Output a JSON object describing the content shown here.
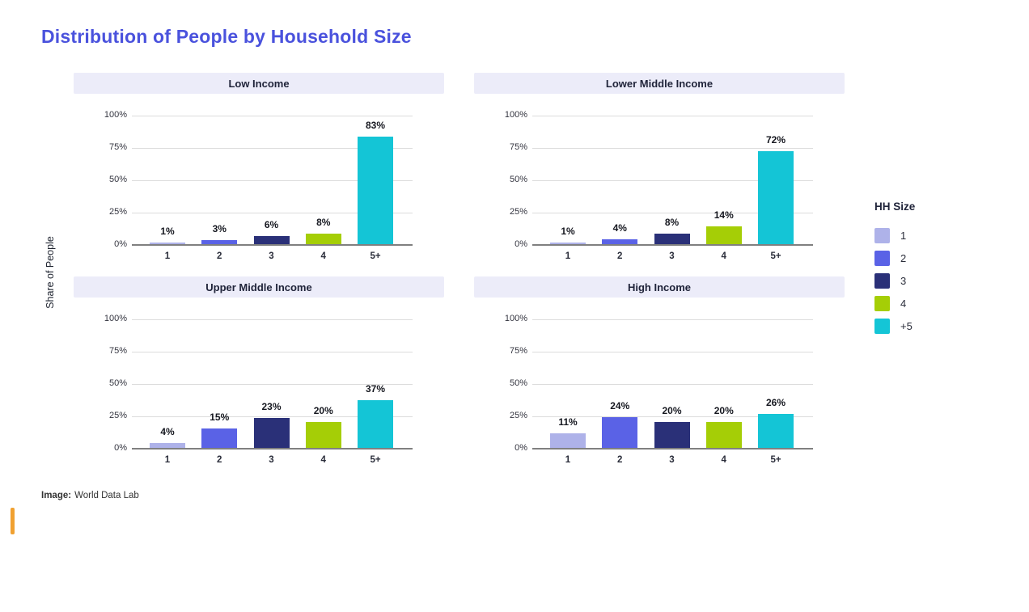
{
  "page": {
    "title": "Distribution of People by Household Size",
    "ylabel": "Share of People",
    "footer": {
      "label": "Image:",
      "source": "World Data Lab"
    }
  },
  "colors": {
    "title_text": "#4a52dd",
    "panel_header_band": "#ececf9",
    "accent_bar_orange": "#f0a131",
    "gridline": "#dcdcdc",
    "axis_line": "#808080"
  },
  "legend": {
    "title": "HH Size",
    "position": "right",
    "items": [
      {
        "label": "1",
        "color": "#aeb2e9"
      },
      {
        "label": "2",
        "color": "#5a62e6"
      },
      {
        "label": "3",
        "color": "#2a3078"
      },
      {
        "label": "4",
        "color": "#a5ce06"
      },
      {
        "label": "+5",
        "color": "#14c5d6"
      }
    ]
  },
  "axis": {
    "yticks": [
      0,
      25,
      50,
      75,
      100
    ],
    "ytick_labels": [
      "0%",
      "25%",
      "50%",
      "75%",
      "100%"
    ],
    "grid": true
  },
  "chart_data": [
    {
      "type": "bar",
      "title": "Low Income",
      "categories": [
        "1",
        "2",
        "3",
        "4",
        "5+"
      ],
      "values": [
        1,
        3,
        6,
        8,
        83
      ],
      "value_labels": [
        "1%",
        "3%",
        "6%",
        "8%",
        "83%"
      ],
      "xlabel": "",
      "ylabel": "Share of People",
      "ylim": [
        0,
        100
      ]
    },
    {
      "type": "bar",
      "title": "Lower Middle Income",
      "categories": [
        "1",
        "2",
        "3",
        "4",
        "5+"
      ],
      "values": [
        1,
        4,
        8,
        14,
        72
      ],
      "value_labels": [
        "1%",
        "4%",
        "8%",
        "14%",
        "72%"
      ],
      "xlabel": "",
      "ylabel": "Share of People",
      "ylim": [
        0,
        100
      ]
    },
    {
      "type": "bar",
      "title": "Upper Middle Income",
      "categories": [
        "1",
        "2",
        "3",
        "4",
        "5+"
      ],
      "values": [
        4,
        15,
        23,
        20,
        37
      ],
      "value_labels": [
        "4%",
        "15%",
        "23%",
        "20%",
        "37%"
      ],
      "xlabel": "",
      "ylabel": "Share of People",
      "ylim": [
        0,
        100
      ]
    },
    {
      "type": "bar",
      "title": "High Income",
      "categories": [
        "1",
        "2",
        "3",
        "4",
        "5+"
      ],
      "values": [
        11,
        24,
        20,
        20,
        26
      ],
      "value_labels": [
        "11%",
        "24%",
        "20%",
        "20%",
        "26%"
      ],
      "xlabel": "",
      "ylabel": "Share of People",
      "ylim": [
        0,
        100
      ]
    }
  ]
}
